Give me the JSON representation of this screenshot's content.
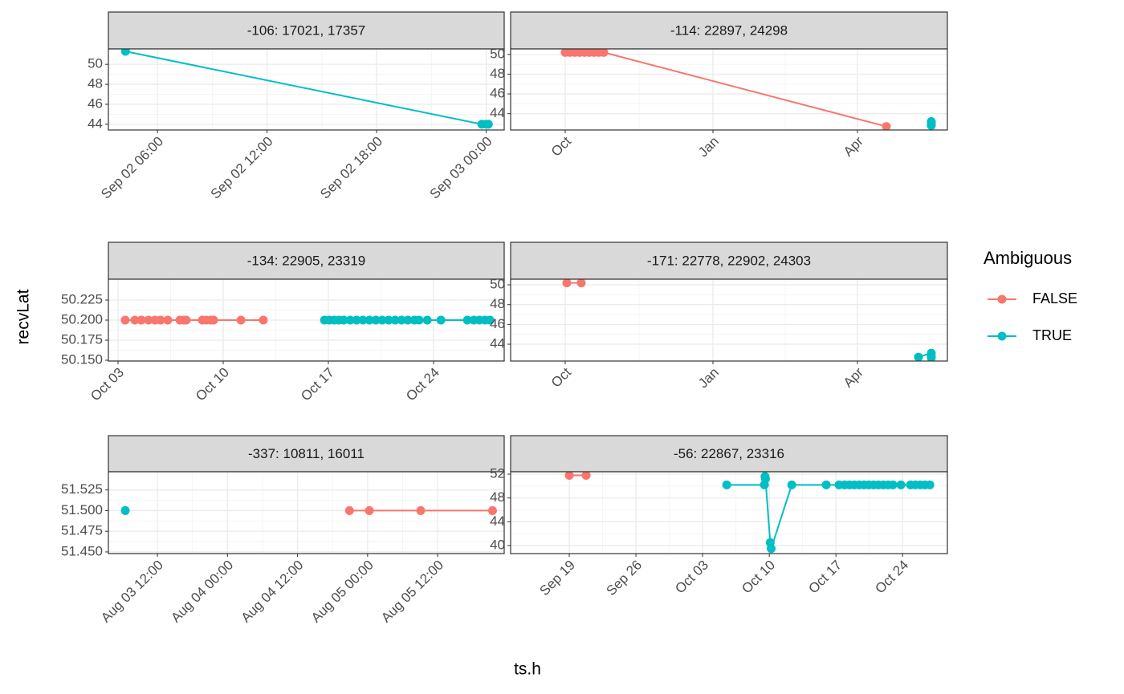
{
  "xlabel": "ts.h",
  "ylabel": "recvLat",
  "legend": {
    "title": "Ambiguous",
    "entries": [
      {
        "name": "FALSE",
        "color": "#F8766D"
      },
      {
        "name": "TRUE",
        "color": "#00BFC4"
      }
    ]
  },
  "chart_data": [
    {
      "type": "line",
      "title": "-106: 17021, 17357",
      "series": [
        {
          "name": "TRUE",
          "x": [
            0.177,
            0.99,
            1.0,
            1.005
          ],
          "values": [
            51.3,
            44.0,
            44.0,
            44.0
          ]
        }
      ],
      "xlim": [
        0.138,
        1.041
      ],
      "ylim": [
        43.43,
        51.54
      ],
      "xticks": [
        {
          "value": 0.25,
          "label": "Sep 02 06:00"
        },
        {
          "value": 0.5,
          "label": "Sep 02 12:00"
        },
        {
          "value": 0.75,
          "label": "Sep 02 18:00"
        },
        {
          "value": 1.0,
          "label": "Sep 03 00:00"
        }
      ],
      "yticks": [
        44,
        46,
        48,
        50
      ]
    },
    {
      "type": "line",
      "title": "-114: 22897, 24298",
      "series": [
        {
          "name": "FALSE",
          "x": [
            0,
            3,
            6,
            9,
            12,
            15,
            18,
            21,
            24,
            200
          ],
          "values": [
            50.2,
            50.2,
            50.2,
            50.2,
            50.2,
            50.2,
            50.2,
            50.2,
            50.2,
            42.7
          ]
        },
        {
          "name": "TRUE",
          "x": [
            228,
            228,
            228
          ],
          "values": [
            43.2,
            43.0,
            42.8
          ]
        }
      ],
      "xlim": [
        -34,
        238
      ],
      "ylim": [
        42.35,
        50.55
      ],
      "xticks": [
        {
          "value": 0,
          "label": "Oct"
        },
        {
          "value": 92,
          "label": "Jan"
        },
        {
          "value": 182,
          "label": "Apr"
        }
      ],
      "yticks": [
        44,
        46,
        48,
        50
      ]
    },
    {
      "type": "line",
      "title": "-134: 22905, 23319",
      "series": [
        {
          "name": "FALSE",
          "x": [
            3.48,
            4.12,
            4.55,
            5.03,
            5.46,
            5.83,
            6.31,
            7.12,
            7.38,
            7.54,
            8.61,
            8.88,
            9.15,
            9.36,
            11.18,
            12.67
          ],
          "values": [
            50.2,
            50.2,
            50.2,
            50.2,
            50.2,
            50.2,
            50.2,
            50.2,
            50.2,
            50.2,
            50.2,
            50.2,
            50.2,
            50.2,
            50.2,
            50.2
          ]
        },
        {
          "name": "TRUE",
          "x": [
            16.74,
            17.06,
            17.38,
            17.7,
            18.02,
            18.45,
            18.87,
            19.3,
            19.73,
            20.16,
            20.58,
            21.01,
            21.44,
            21.87,
            22.29,
            22.72,
            23.04,
            23.58,
            24.49,
            26.25,
            26.68,
            27.05,
            27.43,
            27.75
          ],
          "values": [
            50.2,
            50.2,
            50.2,
            50.2,
            50.2,
            50.2,
            50.2,
            50.2,
            50.2,
            50.2,
            50.2,
            50.2,
            50.2,
            50.2,
            50.2,
            50.2,
            50.2,
            50.2,
            50.2,
            50.2,
            50.2,
            50.2,
            50.2,
            50.2
          ]
        }
      ],
      "xlim": [
        2.36,
        28.7
      ],
      "ylim": [
        50.149,
        50.251
      ],
      "xticks": [
        {
          "value": 3,
          "label": "Oct 03"
        },
        {
          "value": 10,
          "label": "Oct 10"
        },
        {
          "value": 17,
          "label": "Oct 17"
        },
        {
          "value": 24,
          "label": "Oct 24"
        }
      ],
      "yticks": [
        {
          "value": 50.15,
          "label": "50.150"
        },
        50.175,
        {
          "value": 50.2,
          "label": "50.200"
        },
        50.225
      ]
    },
    {
      "type": "line",
      "title": "-171: 22778, 22902, 24303",
      "series": [
        {
          "name": "FALSE",
          "x": [
            1,
            10
          ],
          "values": [
            50.2,
            50.2
          ]
        },
        {
          "name": "TRUE",
          "x": [
            220,
            228,
            228,
            228
          ],
          "values": [
            42.7,
            43.1,
            42.8,
            42.6
          ]
        }
      ],
      "xlim": [
        -34,
        238
      ],
      "ylim": [
        42.3,
        50.57
      ],
      "xticks": [
        {
          "value": 0,
          "label": "Oct"
        },
        {
          "value": 92,
          "label": "Jan"
        },
        {
          "value": 182,
          "label": "Apr"
        }
      ],
      "yticks": [
        44,
        46,
        48,
        50
      ]
    },
    {
      "type": "line",
      "title": "-337: 10811, 16011",
      "series": [
        {
          "name": "FALSE",
          "x": [
            44.9,
            48.3,
            57.1,
            69.4
          ],
          "values": [
            51.5,
            51.5,
            51.5,
            51.5
          ]
        },
        {
          "name": "TRUE",
          "x": [
            6.5
          ],
          "values": [
            51.5
          ]
        }
      ],
      "xlim": [
        3.6,
        71.4
      ],
      "ylim": [
        51.448,
        51.547
      ],
      "xticks": [
        {
          "value": 12,
          "label": "Aug 03 12:00"
        },
        {
          "value": 24,
          "label": "Aug 04 00:00"
        },
        {
          "value": 36,
          "label": "Aug 04 12:00"
        },
        {
          "value": 48,
          "label": "Aug 05 00:00"
        },
        {
          "value": 60,
          "label": "Aug 05 12:00"
        }
      ],
      "yticks": [
        {
          "value": 51.45,
          "label": "51.450"
        },
        51.475,
        {
          "value": 51.5,
          "label": "51.500"
        },
        51.525
      ]
    },
    {
      "type": "line",
      "title": "-56: 22867, 23316",
      "series": [
        {
          "name": "FALSE",
          "x": [
            19,
            20.77
          ],
          "values": [
            51.8,
            51.8
          ]
        },
        {
          "name": "TRUE",
          "x": [
            35.53,
            39.49,
            39.55,
            39.6,
            40.1,
            40.2,
            42.36,
            45.98,
            47.33,
            47.92,
            48.43,
            48.93,
            49.44,
            49.95,
            50.45,
            50.96,
            51.46,
            51.97,
            52.47,
            52.98,
            53.82,
            54.83,
            55.34,
            55.85,
            56.35,
            56.86
          ],
          "values": [
            50.2,
            50.2,
            51.6,
            51.2,
            40.5,
            39.5,
            50.2,
            50.2,
            50.2,
            50.2,
            50.2,
            50.2,
            50.2,
            50.2,
            50.2,
            50.2,
            50.2,
            50.2,
            50.2,
            50.2,
            50.2,
            50.2,
            50.2,
            50.2,
            50.2,
            50.2
          ]
        }
      ],
      "xlim": [
        12.84,
        58.7
      ],
      "ylim": [
        38.65,
        52.4
      ],
      "xticks": [
        {
          "value": 19,
          "label": "Sep 19"
        },
        {
          "value": 26,
          "label": "Sep 26"
        },
        {
          "value": 33,
          "label": "Oct 03"
        },
        {
          "value": 40,
          "label": "Oct 10"
        },
        {
          "value": 47,
          "label": "Oct 17"
        },
        {
          "value": 54,
          "label": "Oct 24"
        }
      ],
      "yticks": [
        40,
        44,
        48,
        52
      ]
    }
  ]
}
